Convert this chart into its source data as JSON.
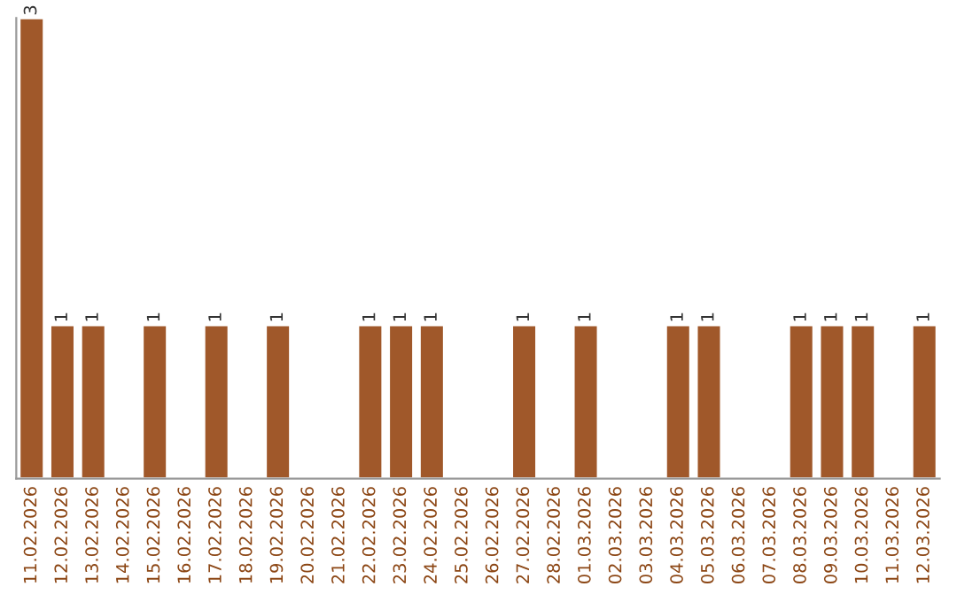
{
  "chart_data": {
    "type": "bar",
    "categories": [
      "11.02.2026",
      "12.02.2026",
      "13.02.2026",
      "14.02.2026",
      "15.02.2026",
      "16.02.2026",
      "17.02.2026",
      "18.02.2026",
      "19.02.2026",
      "20.02.2026",
      "21.02.2026",
      "22.02.2026",
      "23.02.2026",
      "24.02.2026",
      "25.02.2026",
      "26.02.2026",
      "27.02.2026",
      "28.02.2026",
      "01.03.2026",
      "02.03.2026",
      "03.03.2026",
      "04.03.2026",
      "05.03.2026",
      "06.03.2026",
      "07.03.2026",
      "08.03.2026",
      "09.03.2026",
      "10.03.2026",
      "11.03.2026",
      "12.03.2026"
    ],
    "values": [
      3,
      1,
      1,
      null,
      1,
      null,
      1,
      null,
      1,
      null,
      null,
      1,
      1,
      1,
      null,
      null,
      1,
      null,
      1,
      null,
      null,
      1,
      1,
      null,
      null,
      1,
      1,
      1,
      null,
      1
    ],
    "value_labels": [
      "3",
      "1",
      "1",
      null,
      "1",
      null,
      "1",
      null,
      "1",
      null,
      null,
      "1",
      "1",
      "1",
      null,
      null,
      "1",
      null,
      "1",
      null,
      null,
      "1",
      "1",
      null,
      null,
      "1",
      "1",
      "1",
      null,
      "1"
    ],
    "color": "#a0582a",
    "tick_labels": "x",
    "grid": false,
    "legend": false
  }
}
